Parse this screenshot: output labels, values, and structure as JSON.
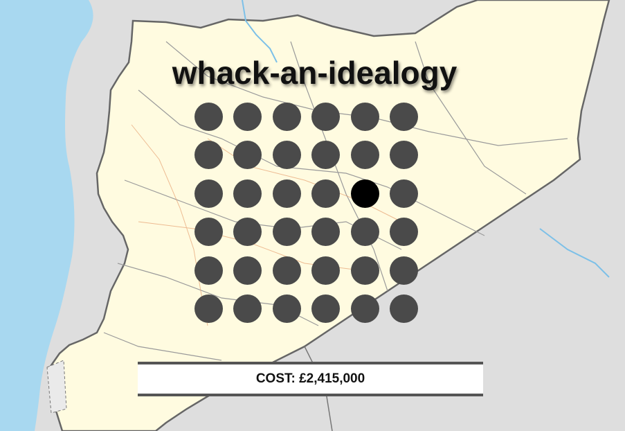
{
  "title": "whack-an-idealogy",
  "cost": {
    "label": "COST:",
    "value": "£2,415,000"
  },
  "grid": {
    "rows": 6,
    "cols": 6,
    "active_cell": {
      "row": 3,
      "col": 5
    }
  },
  "colors": {
    "sea": "#a8d8f0",
    "land_highlight": "#fffbe0",
    "land_other": "#dedede",
    "hole": "#4a4a4a",
    "hole_active": "#000000",
    "cost_border": "#555555"
  }
}
